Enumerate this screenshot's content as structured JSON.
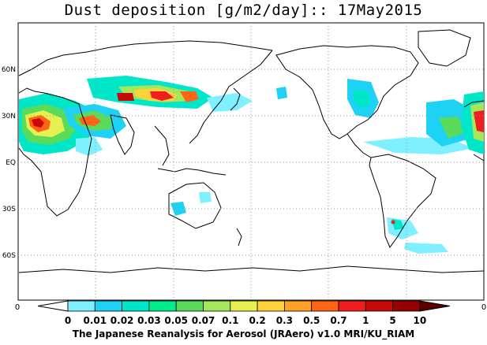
{
  "title": "Dust deposition [g/m2/day]:: 17May2015",
  "footer": "The Japanese Reanalysis for Aerosol (JRAero) v1.0 MRI/KU_RIAM",
  "lat_labels": [
    "60N",
    "30N",
    "EQ",
    "30S",
    "60S"
  ],
  "edge_labels": {
    "left": "0",
    "right": "0"
  },
  "colorbar": {
    "labels": [
      "0",
      "0.01",
      "0.02",
      "0.03",
      "0.05",
      "0.07",
      "0.1",
      "0.2",
      "0.3",
      "0.5",
      "0.7",
      "1",
      "5",
      "10"
    ],
    "colors": [
      "#ffffff",
      "#7ff0ff",
      "#1ed2f5",
      "#00e6c8",
      "#00eb8c",
      "#5adc5a",
      "#a5e65a",
      "#e6f050",
      "#ffd23c",
      "#ffa028",
      "#ff6414",
      "#f01e1e",
      "#c80a0a",
      "#960000",
      "#5a0000"
    ]
  }
}
